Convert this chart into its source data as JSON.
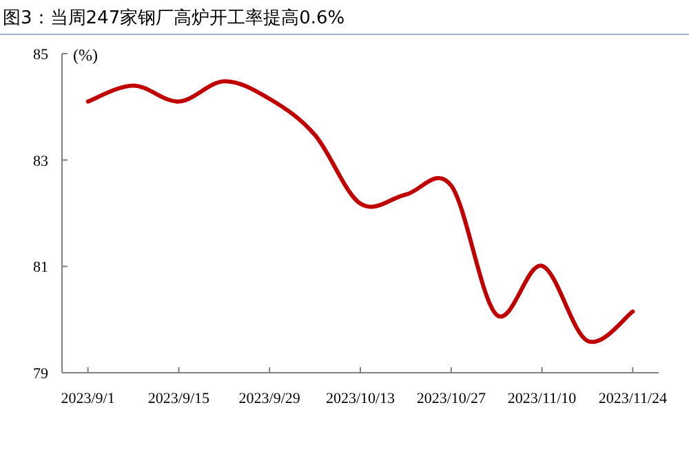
{
  "chart_data": {
    "type": "line",
    "title": "图3：当周247家钢厂高炉开工率提高0.6%",
    "ylabel": "(%)",
    "x": [
      "2023-09-01",
      "2023-09-08",
      "2023-09-15",
      "2023-09-22",
      "2023-09-29",
      "2023-10-06",
      "2023-10-13",
      "2023-10-20",
      "2023-10-27",
      "2023-11-03",
      "2023-11-10",
      "2023-11-17",
      "2023-11-24"
    ],
    "series": [
      {
        "color": "#c00000",
        "values": [
          84.1,
          84.4,
          84.1,
          84.48,
          84.15,
          83.47,
          82.18,
          82.35,
          82.52,
          80.09,
          81.01,
          79.6,
          80.15
        ]
      }
    ],
    "xlim": [
      "2023-08-28",
      "2023-11-28"
    ],
    "xticks": [
      {
        "value": "2023-09-01",
        "label": "2023/9/1"
      },
      {
        "value": "2023-09-15",
        "label": "2023/9/15"
      },
      {
        "value": "2023-09-29",
        "label": "2023/9/29"
      },
      {
        "value": "2023-10-13",
        "label": "2023/10/13"
      },
      {
        "value": "2023-10-27",
        "label": "2023/10/27"
      },
      {
        "value": "2023-11-10",
        "label": "2023/11/10"
      },
      {
        "value": "2023-11-24",
        "label": "2023/11/24"
      }
    ],
    "ylim": [
      79,
      85
    ],
    "yticks": [
      79,
      81,
      83,
      85
    ],
    "grid": false,
    "marker": "none",
    "line_style": "solid"
  }
}
